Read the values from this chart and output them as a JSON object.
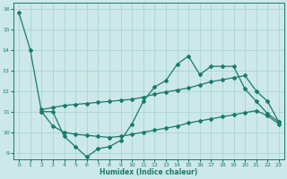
{
  "xlabel": "Humidex (Indice chaleur)",
  "xlim": [
    -0.5,
    23.5
  ],
  "ylim": [
    8.7,
    16.3
  ],
  "yticks": [
    9,
    10,
    11,
    12,
    13,
    14,
    15,
    16
  ],
  "xticks": [
    0,
    1,
    2,
    3,
    4,
    5,
    6,
    7,
    8,
    9,
    10,
    11,
    12,
    13,
    14,
    15,
    16,
    17,
    18,
    19,
    20,
    21,
    22,
    23
  ],
  "background_color": "#cce8e8",
  "grid_color": "#aad4d4",
  "line_color": "#1a7a6e",
  "line1_x": [
    0,
    1,
    2,
    3,
    4,
    5,
    6,
    7,
    8,
    9,
    10,
    11,
    12,
    13,
    14,
    15,
    16,
    17,
    18,
    19,
    20,
    21,
    22,
    23
  ],
  "line1_y": [
    15.8,
    14.0,
    11.0,
    11.0,
    9.8,
    9.3,
    8.8,
    9.2,
    9.3,
    9.6,
    10.4,
    11.5,
    12.2,
    12.5,
    13.3,
    13.7,
    12.8,
    13.2,
    13.2,
    13.2,
    12.1,
    11.5,
    10.9,
    10.5
  ],
  "line2_x": [
    2,
    3,
    4,
    5,
    6,
    7,
    8,
    9,
    10,
    11,
    12,
    13,
    14,
    15,
    16,
    17,
    18,
    19,
    20,
    21,
    22,
    23
  ],
  "line2_y": [
    11.1,
    11.2,
    11.3,
    11.35,
    11.4,
    11.45,
    11.5,
    11.55,
    11.6,
    11.7,
    11.85,
    11.95,
    12.05,
    12.15,
    12.3,
    12.45,
    12.55,
    12.65,
    12.75,
    12.0,
    11.5,
    10.5
  ],
  "line3_x": [
    2,
    3,
    4,
    5,
    6,
    7,
    8,
    9,
    10,
    11,
    12,
    13,
    14,
    15,
    16,
    17,
    18,
    19,
    20,
    21,
    22,
    23
  ],
  "line3_y": [
    11.0,
    10.3,
    10.0,
    9.9,
    9.85,
    9.8,
    9.75,
    9.8,
    9.9,
    10.0,
    10.1,
    10.2,
    10.3,
    10.45,
    10.55,
    10.65,
    10.75,
    10.85,
    10.95,
    11.05,
    10.8,
    10.4
  ]
}
